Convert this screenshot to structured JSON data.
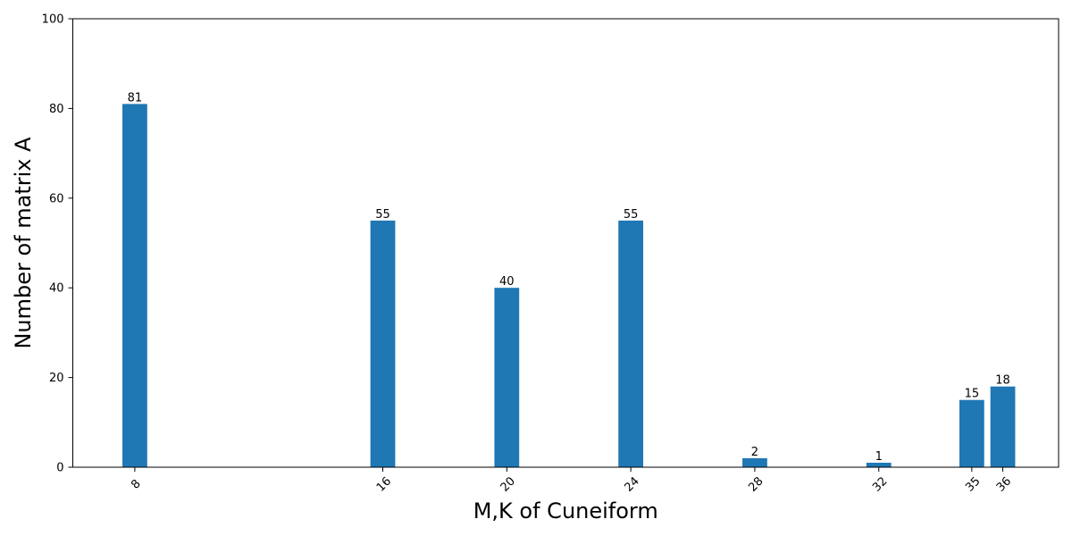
{
  "chart_data": {
    "type": "bar",
    "x": [
      8,
      16,
      20,
      24,
      28,
      32,
      35,
      36
    ],
    "categories": [
      "8",
      "16",
      "20",
      "24",
      "28",
      "32",
      "35",
      "36"
    ],
    "values": [
      81,
      55,
      40,
      55,
      2,
      1,
      15,
      18
    ],
    "data_labels": [
      "81",
      "55",
      "40",
      "55",
      "2",
      "1",
      "15",
      "18"
    ],
    "title": "",
    "xlabel": "M,K of Cuneiform",
    "ylabel": "Number of matrix A",
    "xlim": [
      6,
      37.8
    ],
    "ylim": [
      0,
      100
    ],
    "yticks": [
      0,
      20,
      40,
      60,
      80,
      100
    ],
    "ytick_labels": [
      "0",
      "20",
      "40",
      "60",
      "80",
      "100"
    ],
    "bar_width": 0.8,
    "bar_color": "#1f77b4",
    "grid": false,
    "legend": "none"
  }
}
